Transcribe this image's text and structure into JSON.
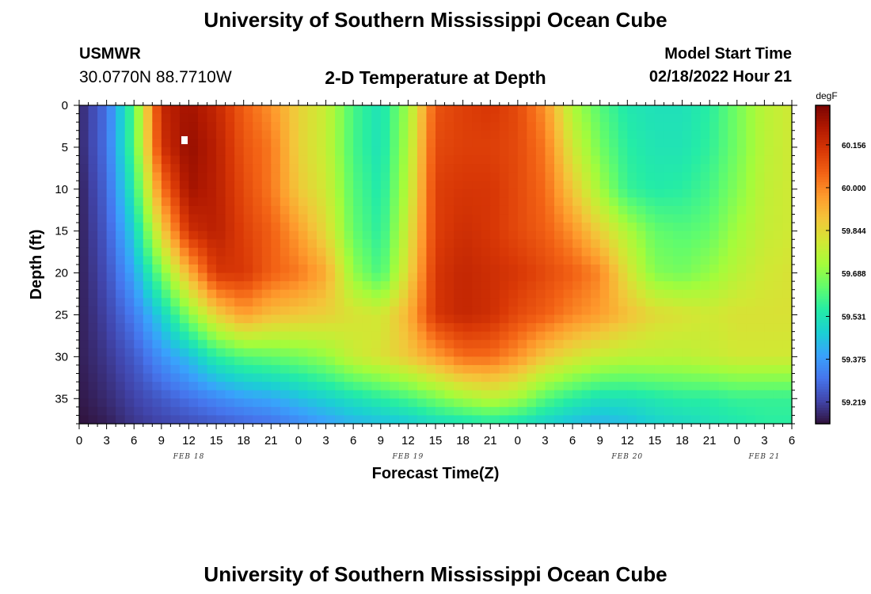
{
  "header": {
    "title": "University of Southern Mississippi Ocean Cube",
    "station": "USMWR",
    "coords": "30.0770N  88.7710W",
    "plot_title": "2-D Temperature at Depth",
    "model_start_label": "Model Start Time",
    "model_start_value": "02/18/2022 Hour 21"
  },
  "footer": {
    "title": "University of Southern Mississippi Ocean Cube"
  },
  "colors": {
    "colormap": [
      "#30123b",
      "#4145ab",
      "#4675ed",
      "#39a2fc",
      "#1bcfd4",
      "#24eca6",
      "#61fc6c",
      "#a4fc3b",
      "#d1e834",
      "#f3c63a",
      "#fe9b2d",
      "#f36315",
      "#d93806",
      "#b11901",
      "#7a0402"
    ]
  },
  "chart_data": {
    "type": "heatmap",
    "xlabel": "Forecast Time(Z)",
    "ylabel": "Depth (ft)",
    "x_tick_labels": [
      "0",
      "3",
      "6",
      "9",
      "12",
      "15",
      "18",
      "21",
      "0",
      "3",
      "6",
      "9",
      "12",
      "15",
      "18",
      "21",
      "0",
      "3",
      "6",
      "9",
      "12",
      "15",
      "18",
      "21",
      "0",
      "3",
      "6"
    ],
    "x_hours_range": [
      0,
      78
    ],
    "day_labels": [
      {
        "label": "FEB 18",
        "hour": 12
      },
      {
        "label": "FEB 19",
        "hour": 36
      },
      {
        "label": "FEB 20",
        "hour": 60
      },
      {
        "label": "FEB 21",
        "hour": 75
      }
    ],
    "y_ticks": [
      0,
      5,
      10,
      15,
      20,
      25,
      30,
      35
    ],
    "ylim": [
      0,
      38
    ],
    "y_inverted": true,
    "colorbar": {
      "unit": "degF",
      "labels": [
        "60.156",
        "60.000",
        "59.844",
        "59.688",
        "59.531",
        "59.375",
        "59.219"
      ],
      "label_values": [
        60.156,
        60.0,
        59.844,
        59.688,
        59.531,
        59.375,
        59.219
      ],
      "range": [
        59.14,
        60.3
      ]
    },
    "grid_hours": [
      0,
      3,
      6,
      9,
      12,
      15,
      18,
      21,
      24,
      27,
      30,
      33,
      36,
      39,
      42,
      45,
      48,
      51,
      54,
      57,
      60,
      63,
      66,
      69,
      72,
      75,
      78
    ],
    "grid_depths": [
      0,
      5,
      10,
      15,
      20,
      25,
      30,
      35,
      38
    ],
    "values": [
      [
        59.17,
        59.3,
        59.62,
        60.18,
        60.24,
        60.18,
        60.06,
        59.98,
        59.86,
        59.78,
        59.6,
        59.52,
        59.72,
        60.08,
        60.12,
        60.14,
        60.1,
        59.98,
        59.74,
        59.62,
        59.54,
        59.52,
        59.52,
        59.56,
        59.66,
        59.76,
        59.8
      ],
      [
        59.17,
        59.3,
        59.62,
        60.15,
        60.26,
        60.2,
        60.08,
        60.02,
        59.86,
        59.78,
        59.6,
        59.52,
        59.74,
        60.1,
        60.12,
        60.12,
        60.1,
        60.02,
        59.8,
        59.66,
        59.56,
        59.53,
        59.53,
        59.57,
        59.66,
        59.76,
        59.8
      ],
      [
        59.16,
        59.28,
        59.56,
        60.02,
        60.24,
        60.2,
        60.1,
        60.02,
        59.88,
        59.8,
        59.62,
        59.54,
        59.76,
        60.12,
        60.14,
        60.14,
        60.1,
        60.04,
        59.88,
        59.72,
        59.58,
        59.55,
        59.56,
        59.6,
        59.68,
        59.77,
        59.8
      ],
      [
        59.16,
        59.26,
        59.48,
        59.86,
        60.16,
        60.2,
        60.12,
        60.06,
        59.96,
        59.84,
        59.64,
        59.56,
        59.8,
        60.12,
        60.16,
        60.14,
        60.1,
        60.06,
        59.98,
        59.86,
        59.74,
        59.64,
        59.62,
        59.64,
        59.72,
        59.78,
        59.8
      ],
      [
        59.16,
        59.24,
        59.4,
        59.66,
        59.92,
        60.14,
        60.14,
        60.06,
        60.02,
        59.94,
        59.7,
        59.6,
        59.84,
        60.14,
        60.18,
        60.16,
        60.14,
        60.1,
        60.06,
        60.0,
        59.82,
        59.68,
        59.66,
        59.7,
        59.76,
        59.8,
        59.82
      ],
      [
        59.16,
        59.22,
        59.32,
        59.48,
        59.68,
        59.86,
        59.96,
        59.9,
        59.88,
        59.86,
        59.82,
        59.8,
        59.92,
        60.14,
        60.18,
        60.16,
        60.1,
        60.06,
        60.0,
        59.96,
        59.9,
        59.84,
        59.82,
        59.8,
        59.82,
        59.82,
        59.82
      ],
      [
        59.16,
        59.2,
        59.26,
        59.36,
        59.44,
        59.56,
        59.62,
        59.64,
        59.66,
        59.7,
        59.78,
        59.82,
        59.88,
        59.96,
        60.04,
        60.04,
        59.98,
        59.88,
        59.82,
        59.78,
        59.76,
        59.76,
        59.76,
        59.78,
        59.8,
        59.8,
        59.8
      ],
      [
        59.15,
        59.18,
        59.22,
        59.26,
        59.3,
        59.34,
        59.38,
        59.4,
        59.44,
        59.48,
        59.52,
        59.56,
        59.6,
        59.66,
        59.72,
        59.76,
        59.72,
        59.62,
        59.56,
        59.52,
        59.52,
        59.54,
        59.56,
        59.56,
        59.58,
        59.58,
        59.58
      ],
      [
        59.14,
        59.16,
        59.2,
        59.22,
        59.24,
        59.26,
        59.28,
        59.3,
        59.34,
        59.38,
        59.42,
        59.44,
        59.46,
        59.5,
        59.52,
        59.54,
        59.52,
        59.48,
        59.44,
        59.42,
        59.44,
        59.48,
        59.5,
        59.52,
        59.54,
        59.56,
        59.56
      ]
    ]
  }
}
